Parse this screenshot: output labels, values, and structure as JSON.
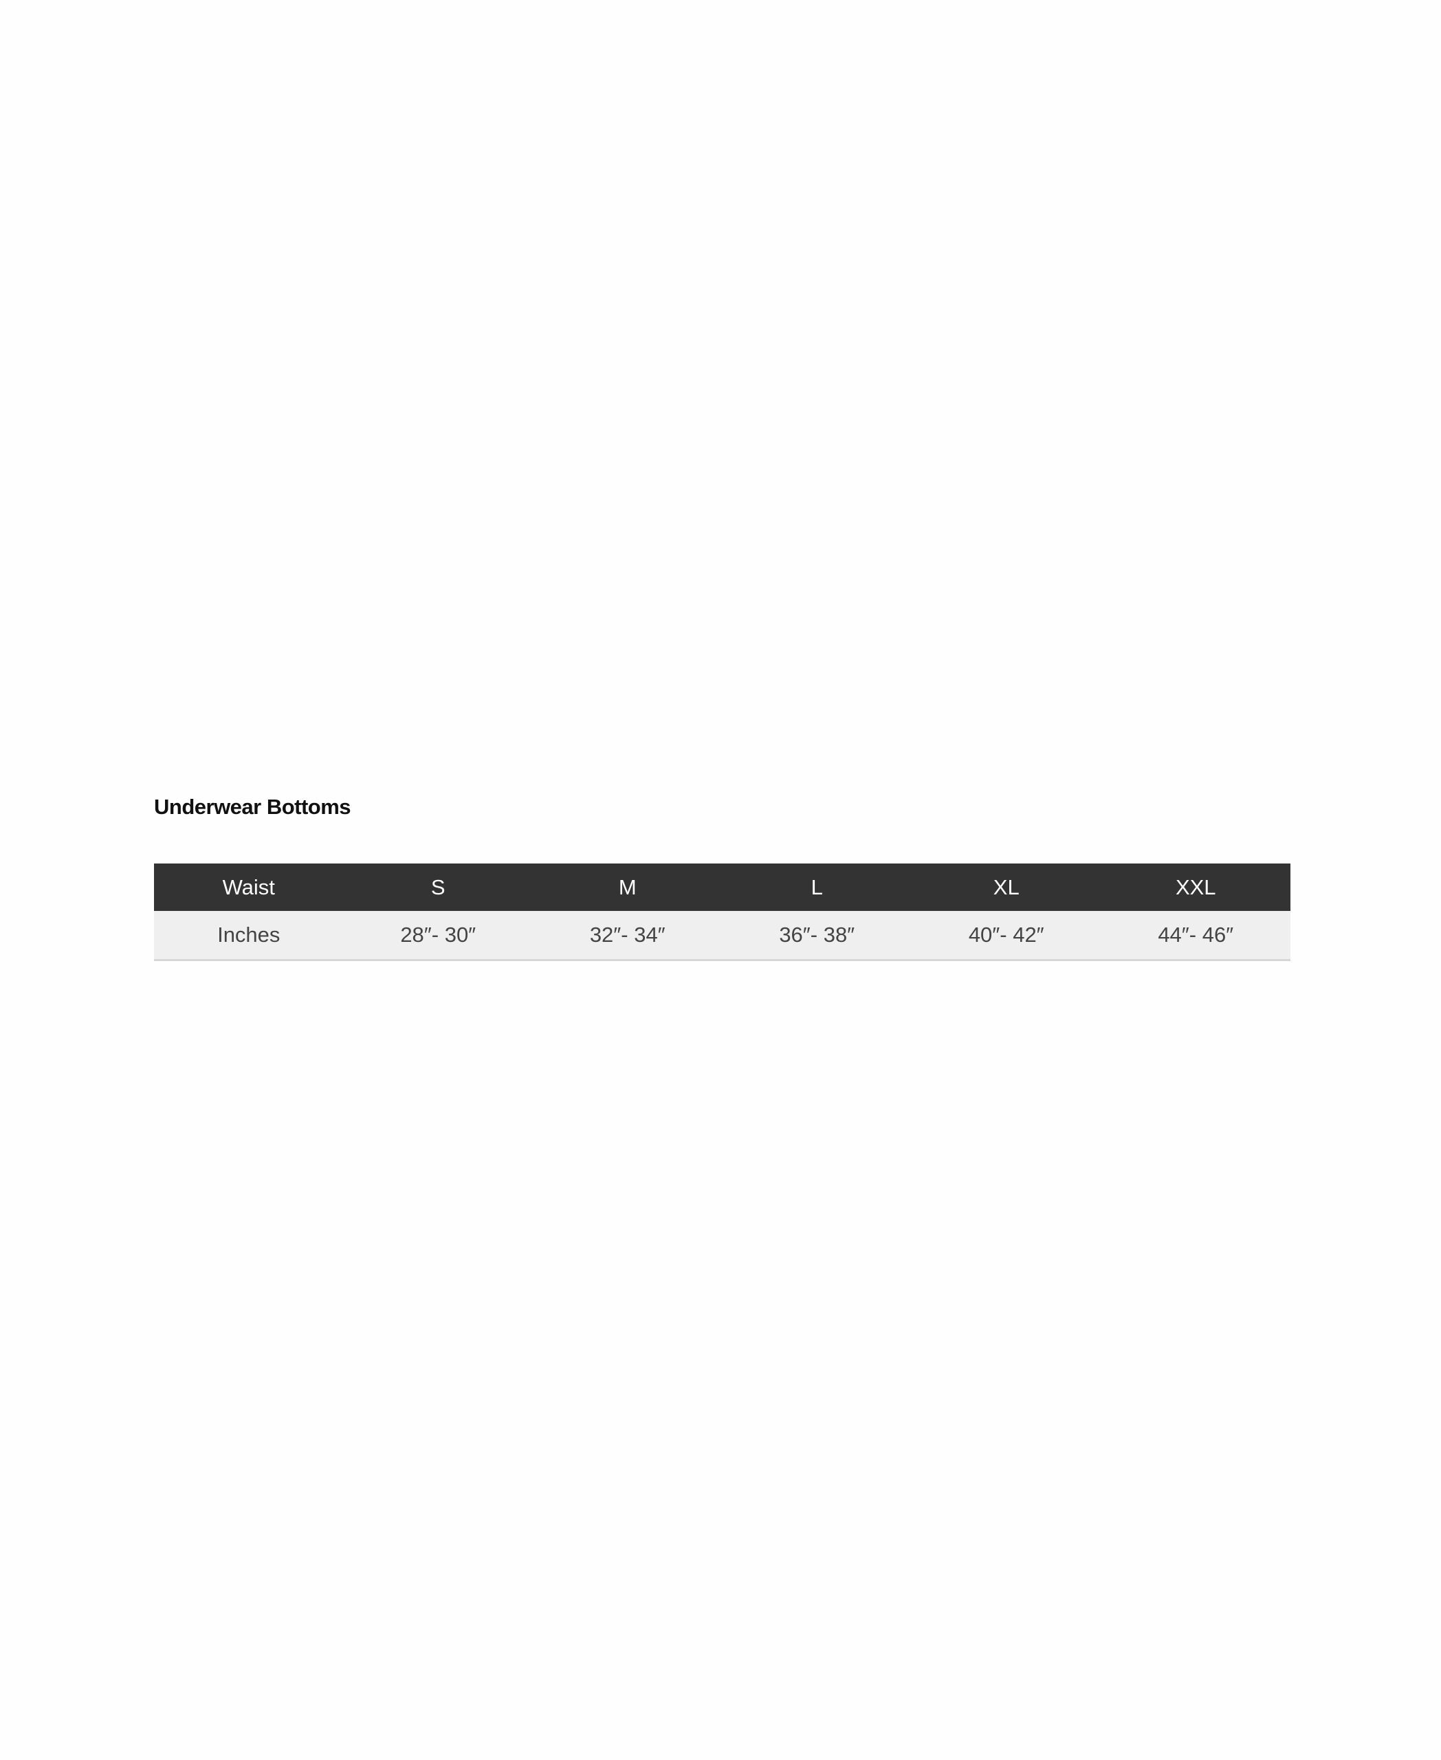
{
  "title": "Underwear Bottoms",
  "table": {
    "headers": [
      "Waist",
      "S",
      "M",
      "L",
      "XL",
      "XXL"
    ],
    "row": [
      "Inches",
      "28″- 30″",
      "32″- 34″",
      "36″- 38″",
      "40″- 42″",
      "44″- 46″"
    ]
  },
  "colors": {
    "header_bg": "#333333",
    "row_bg": "#efefef"
  }
}
